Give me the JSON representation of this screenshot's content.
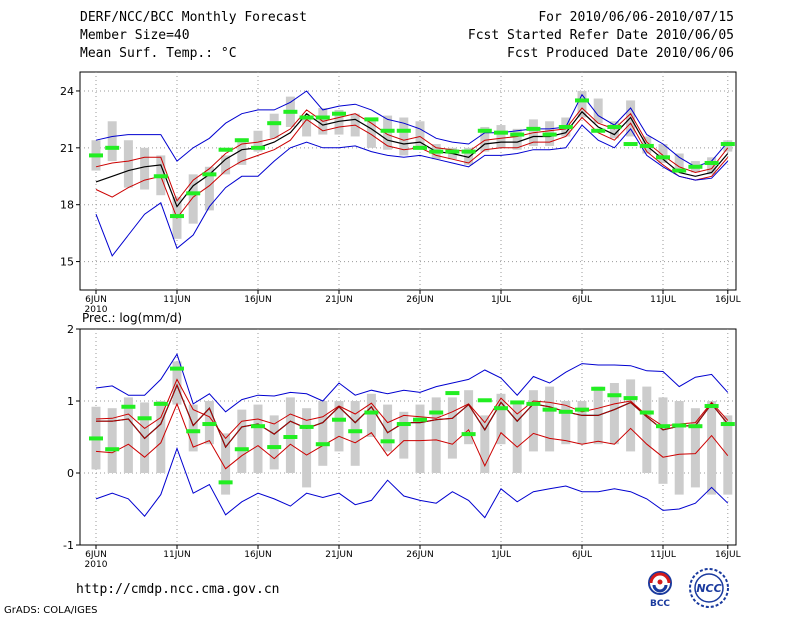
{
  "header": {
    "title": "DERF/NCC/BCC Monthly Forecast",
    "member_size": "Member Size=40",
    "variable": "Mean Surf. Temp.: °C",
    "period": "For 2010/06/06-2010/07/15",
    "fcst_started": "Fcst Started Refer Date 2010/06/05",
    "fcst_produced": "Fcst Produced Date 2010/06/06"
  },
  "footer": {
    "url": "http://cmdp.ncc.cma.gov.cn",
    "grads": "GrADS: COLA/IGES",
    "logo_bcc": "BCC",
    "logo_ncc": "NCC"
  },
  "colors": {
    "max_min": "#0000d0",
    "spread": "#cc0000",
    "mean": "#000000",
    "observed": "#22ee22",
    "box": "#cccccc",
    "grid": "#999999"
  },
  "chart_data": [
    {
      "type": "line",
      "title": "Mean Surf. Temp.: °C",
      "days": 40,
      "ylim": [
        13.5,
        25
      ],
      "yticks": [
        15,
        18,
        21,
        24
      ],
      "tick_labels": [
        {
          "day": 0,
          "label": "6JUN",
          "sub": "2010"
        },
        {
          "day": 5,
          "label": "11JUN"
        },
        {
          "day": 10,
          "label": "16JUN"
        },
        {
          "day": 15,
          "label": "21JUN"
        },
        {
          "day": 20,
          "label": "26JUN"
        },
        {
          "day": 25,
          "label": "1JUL"
        },
        {
          "day": 30,
          "label": "6JUL"
        },
        {
          "day": 35,
          "label": "11JUL"
        },
        {
          "day": 39,
          "label": "16JUL"
        }
      ],
      "series": [
        {
          "name": "max",
          "values": [
            21.4,
            21.6,
            21.7,
            21.7,
            21.7,
            20.3,
            21.0,
            21.5,
            22.3,
            22.8,
            23.0,
            23.0,
            23.4,
            24.0,
            23.0,
            23.2,
            23.3,
            23.0,
            22.5,
            22.3,
            22.0,
            21.5,
            21.3,
            21.2,
            21.8,
            21.8,
            21.9,
            22.0,
            22.0,
            22.1,
            23.8,
            22.7,
            22.2,
            23.1,
            21.7,
            21.2,
            20.5,
            20.0,
            20.3,
            21.3
          ]
        },
        {
          "name": "upper",
          "values": [
            20.0,
            20.2,
            20.3,
            20.5,
            20.5,
            18.2,
            19.3,
            19.9,
            20.7,
            21.2,
            21.3,
            21.5,
            22.0,
            23.0,
            22.4,
            22.6,
            22.8,
            22.3,
            21.7,
            21.4,
            21.6,
            21.0,
            20.9,
            20.8,
            21.4,
            21.5,
            21.6,
            21.8,
            21.9,
            22.0,
            23.1,
            22.3,
            22.0,
            22.8,
            21.3,
            20.6,
            20.0,
            19.7,
            19.9,
            21.0
          ]
        },
        {
          "name": "mean",
          "values": [
            19.2,
            19.5,
            19.8,
            20.0,
            20.1,
            17.9,
            19.0,
            19.6,
            20.4,
            20.9,
            21.0,
            21.3,
            21.8,
            22.8,
            22.2,
            22.4,
            22.5,
            22.0,
            21.4,
            21.2,
            21.3,
            20.8,
            20.7,
            20.5,
            21.2,
            21.3,
            21.3,
            21.6,
            21.6,
            21.8,
            22.9,
            22.1,
            21.7,
            22.6,
            21.1,
            20.4,
            19.7,
            19.5,
            19.7,
            20.7
          ]
        },
        {
          "name": "lower",
          "values": [
            18.8,
            18.4,
            18.9,
            19.3,
            19.5,
            17.3,
            18.4,
            19.0,
            19.8,
            20.3,
            20.6,
            20.9,
            21.4,
            22.5,
            21.9,
            22.1,
            22.2,
            21.7,
            21.1,
            20.9,
            21.0,
            20.6,
            20.4,
            20.2,
            20.9,
            21.0,
            21.0,
            21.3,
            21.3,
            21.6,
            22.6,
            21.8,
            21.4,
            22.3,
            20.8,
            20.1,
            19.5,
            19.3,
            19.5,
            20.5
          ]
        },
        {
          "name": "min",
          "values": [
            17.5,
            15.3,
            16.4,
            17.5,
            18.1,
            15.7,
            16.4,
            17.9,
            18.9,
            19.5,
            19.5,
            20.3,
            21.0,
            21.3,
            21.0,
            21.0,
            21.1,
            20.8,
            20.6,
            20.5,
            20.6,
            20.4,
            20.2,
            20.0,
            20.6,
            20.6,
            20.7,
            20.9,
            20.9,
            21.0,
            22.2,
            21.4,
            21.0,
            22.0,
            20.6,
            20.0,
            19.5,
            19.3,
            19.4,
            20.3
          ]
        }
      ],
      "boxes": [
        [
          19.8,
          21.4
        ],
        [
          20.3,
          22.4
        ],
        [
          18.9,
          21.4
        ],
        [
          18.8,
          21.0
        ],
        [
          18.5,
          20.6
        ],
        [
          16.2,
          18.4
        ],
        [
          17.0,
          19.6
        ],
        [
          17.7,
          20.0
        ],
        [
          19.6,
          20.6
        ],
        [
          20.1,
          21.5
        ],
        [
          20.8,
          21.9
        ],
        [
          21.5,
          22.8
        ],
        [
          22.1,
          23.7
        ],
        [
          21.6,
          22.7
        ],
        [
          21.7,
          23.1
        ],
        [
          21.7,
          23.0
        ],
        [
          21.6,
          22.8
        ],
        [
          21.0,
          22.4
        ],
        [
          20.9,
          22.7
        ],
        [
          20.6,
          22.6
        ],
        [
          20.9,
          22.4
        ],
        [
          20.4,
          21.2
        ],
        [
          20.4,
          21.0
        ],
        [
          20.1,
          21.0
        ],
        [
          20.8,
          22.1
        ],
        [
          21.0,
          22.2
        ],
        [
          20.9,
          22.0
        ],
        [
          21.1,
          22.5
        ],
        [
          21.1,
          22.4
        ],
        [
          21.6,
          22.6
        ],
        [
          22.6,
          24.0
        ],
        [
          22.3,
          23.6
        ],
        [
          21.5,
          22.4
        ],
        [
          21.6,
          23.5
        ],
        [
          20.7,
          21.6
        ],
        [
          20.2,
          21.2
        ],
        [
          19.7,
          20.7
        ],
        [
          19.7,
          20.3
        ],
        [
          19.6,
          20.5
        ],
        [
          20.8,
          21.4
        ]
      ],
      "observed": [
        20.6,
        21.0,
        null,
        null,
        19.5,
        17.4,
        18.6,
        19.6,
        20.9,
        21.4,
        21.0,
        22.3,
        22.9,
        22.6,
        22.6,
        22.8,
        null,
        22.5,
        21.9,
        21.9,
        21.0,
        20.8,
        20.8,
        20.8,
        21.9,
        21.8,
        21.7,
        22.0,
        21.7,
        22.1,
        23.5,
        21.9,
        22.1,
        21.2,
        21.1,
        20.5,
        19.8,
        20.0,
        20.2,
        21.2
      ]
    },
    {
      "type": "line",
      "title": "Prec.: log(mm/d)",
      "days": 40,
      "ylim": [
        -1,
        2
      ],
      "yticks": [
        -1,
        0,
        1,
        2
      ],
      "tick_labels": [
        {
          "day": 0,
          "label": "6JUN",
          "sub": "2010"
        },
        {
          "day": 5,
          "label": "11JUN"
        },
        {
          "day": 10,
          "label": "16JUN"
        },
        {
          "day": 15,
          "label": "21JUN"
        },
        {
          "day": 20,
          "label": "26JUN"
        },
        {
          "day": 25,
          "label": "1JUL"
        },
        {
          "day": 30,
          "label": "6JUL"
        },
        {
          "day": 35,
          "label": "11JUL"
        },
        {
          "day": 39,
          "label": "16JUL"
        }
      ],
      "series": [
        {
          "name": "max",
          "values": [
            1.18,
            1.21,
            1.08,
            1.08,
            1.3,
            1.65,
            0.96,
            1.1,
            0.85,
            1.02,
            1.08,
            1.07,
            1.12,
            1.1,
            1.0,
            1.25,
            1.08,
            1.15,
            1.1,
            1.15,
            1.12,
            1.2,
            1.25,
            1.3,
            1.43,
            1.32,
            1.08,
            1.34,
            1.25,
            1.4,
            1.52,
            1.5,
            1.5,
            1.49,
            1.42,
            1.41,
            1.2,
            1.33,
            1.37,
            1.12
          ]
        },
        {
          "name": "upper",
          "values": [
            0.75,
            0.76,
            0.82,
            0.62,
            0.77,
            1.3,
            0.88,
            0.78,
            0.48,
            0.72,
            0.75,
            0.68,
            0.82,
            0.73,
            0.78,
            0.93,
            0.82,
            0.97,
            0.7,
            0.8,
            0.78,
            0.76,
            0.85,
            0.96,
            0.7,
            1.04,
            0.82,
            1.0,
            0.98,
            0.94,
            0.85,
            0.9,
            0.96,
            1.0,
            0.8,
            0.65,
            0.68,
            0.7,
            0.98,
            0.73
          ]
        },
        {
          "name": "mean",
          "values": [
            0.72,
            0.72,
            0.75,
            0.48,
            0.68,
            1.22,
            0.66,
            0.9,
            0.36,
            0.64,
            0.68,
            0.54,
            0.72,
            0.62,
            0.7,
            0.92,
            0.7,
            0.92,
            0.56,
            0.7,
            0.7,
            0.74,
            0.76,
            0.95,
            0.6,
            0.98,
            0.72,
            0.96,
            0.92,
            0.85,
            0.8,
            0.8,
            0.88,
            0.98,
            0.78,
            0.6,
            0.65,
            0.66,
            0.96,
            0.68
          ]
        },
        {
          "name": "lower",
          "values": [
            0.3,
            0.28,
            0.4,
            0.22,
            0.42,
            0.96,
            0.36,
            0.45,
            0.06,
            0.24,
            0.38,
            0.2,
            0.4,
            0.25,
            0.38,
            0.51,
            0.42,
            0.56,
            0.24,
            0.45,
            0.45,
            0.46,
            0.4,
            0.6,
            0.1,
            0.56,
            0.36,
            0.55,
            0.48,
            0.45,
            0.4,
            0.44,
            0.4,
            0.62,
            0.4,
            0.22,
            0.26,
            0.27,
            0.52,
            0.24
          ]
        },
        {
          "name": "min",
          "values": [
            -0.36,
            -0.28,
            -0.36,
            -0.6,
            -0.3,
            0.34,
            -0.28,
            -0.16,
            -0.58,
            -0.4,
            -0.28,
            -0.36,
            -0.46,
            -0.28,
            -0.34,
            -0.28,
            -0.44,
            -0.38,
            -0.1,
            -0.32,
            -0.38,
            -0.42,
            -0.26,
            -0.38,
            -0.62,
            -0.22,
            -0.4,
            -0.26,
            -0.22,
            -0.18,
            -0.26,
            -0.26,
            -0.22,
            -0.26,
            -0.36,
            -0.52,
            -0.5,
            -0.42,
            -0.2,
            -0.42
          ]
        },
        {
          "name": "mean_blend",
          "values": [
            0.72,
            0.72,
            0.75,
            0.48,
            0.68,
            1.22,
            0.66,
            0.9,
            0.36,
            0.64,
            0.68,
            0.54,
            0.72,
            0.62,
            0.7,
            0.92,
            0.7,
            0.92,
            0.56,
            0.7,
            0.7,
            0.74,
            0.76,
            0.95,
            0.6,
            0.98,
            0.72,
            0.96,
            0.92,
            0.85,
            0.8,
            0.8,
            0.88,
            0.98,
            0.78,
            0.6,
            0.65,
            0.66,
            0.96,
            0.68
          ]
        }
      ],
      "boxes": [
        [
          0.05,
          0.92
        ],
        [
          0.0,
          0.9
        ],
        [
          0.0,
          1.05
        ],
        [
          0.0,
          0.98
        ],
        [
          0.0,
          1.0
        ],
        [
          0.95,
          1.55
        ],
        [
          0.3,
          0.95
        ],
        [
          0.4,
          1.0
        ],
        [
          -0.3,
          0.55
        ],
        [
          0.0,
          0.88
        ],
        [
          0.0,
          0.95
        ],
        [
          0.05,
          0.8
        ],
        [
          0.0,
          1.05
        ],
        [
          -0.2,
          0.9
        ],
        [
          0.1,
          1.0
        ],
        [
          0.3,
          1.0
        ],
        [
          0.1,
          1.0
        ],
        [
          0.5,
          1.1
        ],
        [
          0.3,
          0.95
        ],
        [
          0.2,
          0.85
        ],
        [
          0.0,
          0.95
        ],
        [
          0.0,
          1.05
        ],
        [
          0.2,
          1.05
        ],
        [
          0.4,
          1.15
        ],
        [
          0.0,
          0.8
        ],
        [
          0.4,
          1.1
        ],
        [
          0.0,
          1.0
        ],
        [
          0.3,
          1.15
        ],
        [
          0.3,
          1.2
        ],
        [
          0.4,
          1.0
        ],
        [
          0.4,
          1.0
        ],
        [
          0.4,
          1.2
        ],
        [
          0.4,
          1.25
        ],
        [
          0.3,
          1.3
        ],
        [
          0.0,
          1.2
        ],
        [
          -0.15,
          1.05
        ],
        [
          -0.3,
          1.0
        ],
        [
          -0.2,
          0.9
        ],
        [
          -0.3,
          1.0
        ],
        [
          -0.3,
          0.8
        ]
      ],
      "observed": [
        0.48,
        0.33,
        0.92,
        0.76,
        0.96,
        1.45,
        0.58,
        0.68,
        -0.13,
        0.33,
        0.65,
        0.36,
        0.5,
        0.64,
        0.4,
        0.74,
        0.58,
        0.84,
        0.44,
        0.68,
        0.74,
        0.84,
        1.11,
        0.54,
        1.01,
        0.9,
        0.98,
        0.96,
        0.88,
        0.85,
        0.88,
        1.17,
        1.08,
        1.04,
        0.84,
        0.65,
        0.66,
        0.65,
        0.93,
        0.68
      ]
    }
  ]
}
